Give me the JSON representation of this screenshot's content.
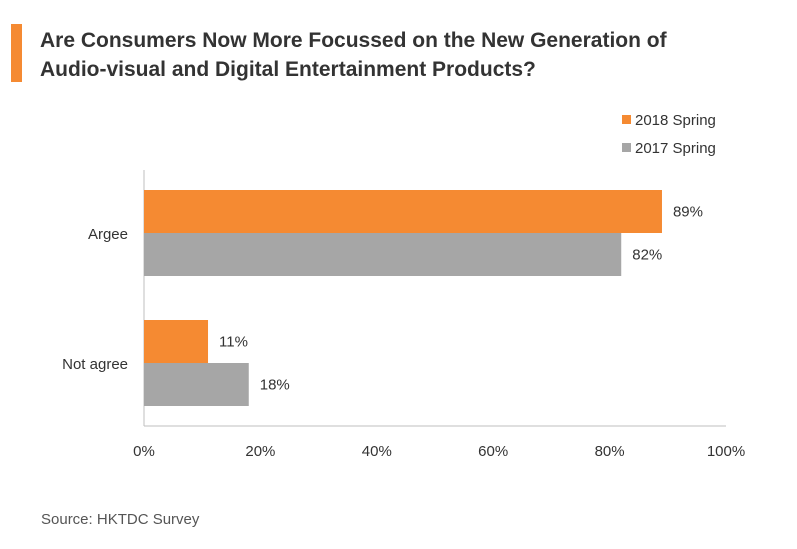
{
  "title": {
    "line1": "Are Consumers Now More Focussed on the New Generation of",
    "line2": "Audio-visual and Digital Entertainment Products?"
  },
  "source": "Source: HKTDC Survey",
  "colors": {
    "accent": "#F58A32",
    "series_2018": "#F58A32",
    "series_2017": "#A6A6A6",
    "axis": "#BFBFBF",
    "text": "#333333"
  },
  "chart_data": {
    "type": "bar",
    "orientation": "horizontal",
    "categories": [
      "Argee",
      "Not agree"
    ],
    "series": [
      {
        "name": "2018 Spring",
        "values": [
          89,
          11
        ],
        "labels": [
          "89%",
          "11%"
        ]
      },
      {
        "name": "2017 Spring",
        "values": [
          82,
          18
        ],
        "labels": [
          "82%",
          "18%"
        ]
      }
    ],
    "xlim": [
      0,
      100
    ],
    "xticks": [
      0,
      20,
      40,
      60,
      80,
      100
    ],
    "xtick_labels": [
      "0%",
      "20%",
      "40%",
      "60%",
      "80%",
      "100%"
    ],
    "grid": false,
    "legend": "top-right"
  }
}
